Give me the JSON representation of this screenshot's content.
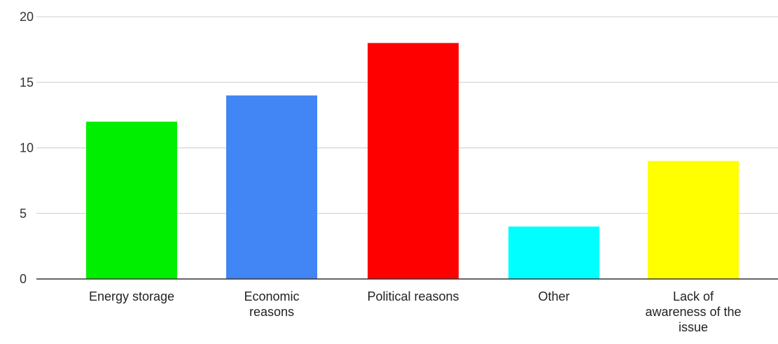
{
  "chart_data": {
    "type": "bar",
    "categories": [
      "Energy storage",
      "Economic reasons",
      "Political reasons",
      "Other",
      "Lack of awareness of the issue"
    ],
    "category_label_lines": [
      [
        "Energy storage"
      ],
      [
        "Economic",
        "reasons"
      ],
      [
        "Political reasons"
      ],
      [
        "Other"
      ],
      [
        "Lack of",
        "awareness of the",
        "issue"
      ]
    ],
    "values": [
      12,
      14,
      18,
      4,
      9
    ],
    "colors": [
      "#00ee00",
      "#4285f4",
      "#ff0000",
      "#00ffff",
      "#ffff00"
    ],
    "yticks": [
      0,
      5,
      10,
      15,
      20
    ],
    "ylim": [
      0,
      20
    ],
    "grid": true,
    "title": "",
    "xlabel": "",
    "ylabel": ""
  }
}
